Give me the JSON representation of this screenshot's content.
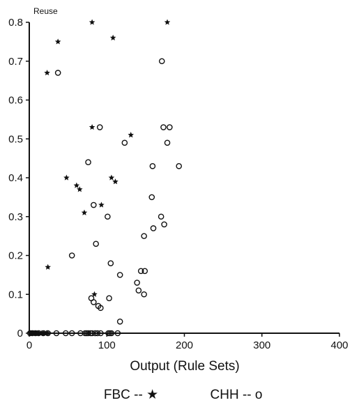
{
  "chart_data": {
    "type": "scatter",
    "title": "",
    "xlabel": "Output (Rule Sets)",
    "ylabel": "Reuse",
    "xlim": [
      0,
      400
    ],
    "ylim": [
      0,
      0.8
    ],
    "x_ticks": [
      "0",
      "100",
      "200",
      "300",
      "400"
    ],
    "y_ticks": [
      "0",
      "0.1",
      "0.2",
      "0.3",
      "0.4",
      "0.5",
      "0.6",
      "0.7",
      "0.8"
    ],
    "grid": false,
    "legend": {
      "placement": "bottom",
      "text": [
        "FBC -- ★",
        "CHH -- o"
      ]
    },
    "series": [
      {
        "name": "FBC",
        "marker": "star",
        "points": [
          [
            1,
            0
          ],
          [
            2,
            0
          ],
          [
            3,
            0
          ],
          [
            4,
            0
          ],
          [
            5,
            0
          ],
          [
            6,
            0
          ],
          [
            7,
            0
          ],
          [
            8,
            0
          ],
          [
            9,
            0
          ],
          [
            10,
            0
          ],
          [
            12,
            0
          ],
          [
            14,
            0
          ],
          [
            16,
            0
          ],
          [
            18,
            0
          ],
          [
            20,
            0
          ],
          [
            22,
            0
          ],
          [
            24,
            0
          ],
          [
            23,
            0.67
          ],
          [
            24,
            0.17
          ],
          [
            37,
            0.75
          ],
          [
            48,
            0.4
          ],
          [
            61,
            0.38
          ],
          [
            65,
            0.37
          ],
          [
            71,
            0.31
          ],
          [
            81,
            0.8
          ],
          [
            81,
            0.53
          ],
          [
            84,
            0.1
          ],
          [
            93,
            0.33
          ],
          [
            106,
            0.4
          ],
          [
            108,
            0.76
          ],
          [
            111,
            0.39
          ],
          [
            131,
            0.51
          ],
          [
            178,
            0.8
          ]
        ]
      },
      {
        "name": "CHH",
        "marker": "circle",
        "points": [
          [
            1,
            0
          ],
          [
            4,
            0
          ],
          [
            8,
            0
          ],
          [
            12,
            0
          ],
          [
            18,
            0
          ],
          [
            24,
            0
          ],
          [
            35,
            0
          ],
          [
            47,
            0
          ],
          [
            55,
            0
          ],
          [
            66,
            0
          ],
          [
            72,
            0
          ],
          [
            74,
            0
          ],
          [
            76,
            0
          ],
          [
            79,
            0
          ],
          [
            81,
            0
          ],
          [
            85,
            0
          ],
          [
            88,
            0
          ],
          [
            92,
            0
          ],
          [
            102,
            0
          ],
          [
            104,
            0
          ],
          [
            106,
            0
          ],
          [
            114,
            0
          ],
          [
            37,
            0.67
          ],
          [
            55,
            0.2
          ],
          [
            76,
            0.44
          ],
          [
            80,
            0.09
          ],
          [
            83,
            0.33
          ],
          [
            83,
            0.08
          ],
          [
            86,
            0.23
          ],
          [
            89,
            0.07
          ],
          [
            91,
            0.53
          ],
          [
            92,
            0.065
          ],
          [
            101,
            0.3
          ],
          [
            103,
            0.09
          ],
          [
            105,
            0.18
          ],
          [
            117,
            0.15
          ],
          [
            117,
            0.03
          ],
          [
            123,
            0.49
          ],
          [
            139,
            0.13
          ],
          [
            141,
            0.11
          ],
          [
            144,
            0.16
          ],
          [
            148,
            0.1
          ],
          [
            149,
            0.16
          ],
          [
            148,
            0.25
          ],
          [
            158,
            0.35
          ],
          [
            159,
            0.43
          ],
          [
            160,
            0.27
          ],
          [
            170,
            0.3
          ],
          [
            171,
            0.7
          ],
          [
            173,
            0.53
          ],
          [
            174,
            0.28
          ],
          [
            178,
            0.49
          ],
          [
            181,
            0.53
          ],
          [
            193,
            0.43
          ]
        ]
      }
    ]
  }
}
